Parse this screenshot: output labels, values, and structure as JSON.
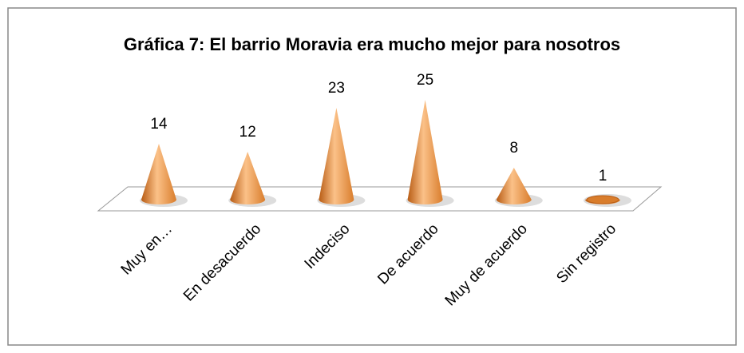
{
  "chart_data": {
    "type": "cone",
    "title": "Gráfica 7: El barrio Moravia era mucho mejor para nosotros",
    "categories": [
      "Muy en…",
      "En desacuerdo",
      "Indeciso",
      "De acuerdo",
      "Muy de acuerdo",
      "Sin registro"
    ],
    "values": [
      14,
      12,
      23,
      25,
      8,
      1
    ],
    "color": "#f0a050"
  }
}
